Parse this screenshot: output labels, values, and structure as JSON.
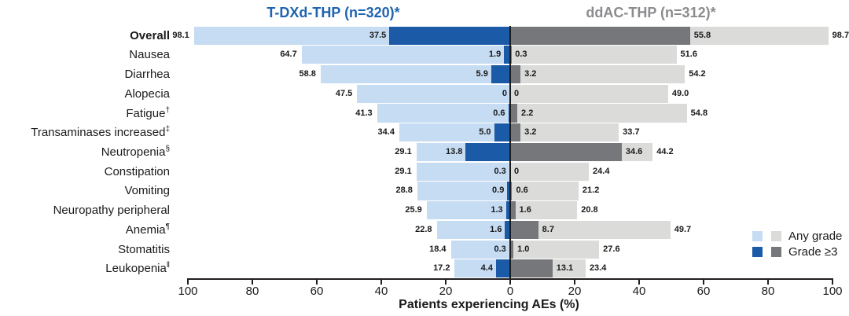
{
  "header": {
    "left_title": "T-DXd-THP (n=320)*",
    "right_title": "ddAC-THP (n=312)*"
  },
  "axis": {
    "label": "Patients experiencing AEs (%)",
    "tick_labels": [
      "100",
      "80",
      "60",
      "40",
      "20",
      "0",
      "20",
      "40",
      "60",
      "80",
      "100"
    ],
    "max_percent": 100
  },
  "legend": {
    "any_grade": "Any grade",
    "grade3": "Grade ≥3"
  },
  "colors": {
    "tdxd_any": "#C6DCF3",
    "tdxd_grade3": "#1A5AA6",
    "ddac_any": "#DBDBDA",
    "ddac_grade3": "#76777A",
    "left_title": "#1E64AE",
    "right_title": "#8B8C8E",
    "axis": "#231F20"
  },
  "rows": [
    {
      "label": "Overall",
      "sup": "",
      "bold": true,
      "tdxd_any": "98.1",
      "tdxd_g3": "37.5",
      "ddac_g3": "55.8",
      "ddac_any": "98.7"
    },
    {
      "label": "Nausea",
      "sup": "",
      "bold": false,
      "tdxd_any": "64.7",
      "tdxd_g3": "1.9",
      "ddac_g3": "0.3",
      "ddac_any": "51.6"
    },
    {
      "label": "Diarrhea",
      "sup": "",
      "bold": false,
      "tdxd_any": "58.8",
      "tdxd_g3": "5.9",
      "ddac_g3": "3.2",
      "ddac_any": "54.2"
    },
    {
      "label": "Alopecia",
      "sup": "",
      "bold": false,
      "tdxd_any": "47.5",
      "tdxd_g3": "0",
      "ddac_g3": "0",
      "ddac_any": "49.0"
    },
    {
      "label": "Fatigue",
      "sup": "†",
      "bold": false,
      "tdxd_any": "41.3",
      "tdxd_g3": "0.6",
      "ddac_g3": "2.2",
      "ddac_any": "54.8"
    },
    {
      "label": "Transaminases increased",
      "sup": "‡",
      "bold": false,
      "tdxd_any": "34.4",
      "tdxd_g3": "5.0",
      "ddac_g3": "3.2",
      "ddac_any": "33.7"
    },
    {
      "label": "Neutropenia",
      "sup": "§",
      "bold": false,
      "tdxd_any": "29.1",
      "tdxd_g3": "13.8",
      "ddac_g3": "34.6",
      "ddac_any": "44.2"
    },
    {
      "label": "Constipation",
      "sup": "",
      "bold": false,
      "tdxd_any": "29.1",
      "tdxd_g3": "0.3",
      "ddac_g3": "0",
      "ddac_any": "24.4"
    },
    {
      "label": "Vomiting",
      "sup": "",
      "bold": false,
      "tdxd_any": "28.8",
      "tdxd_g3": "0.9",
      "ddac_g3": "0.6",
      "ddac_any": "21.2"
    },
    {
      "label": "Neuropathy peripheral",
      "sup": "",
      "bold": false,
      "tdxd_any": "25.9",
      "tdxd_g3": "1.3",
      "ddac_g3": "1.6",
      "ddac_any": "20.8"
    },
    {
      "label": "Anemia",
      "sup": "¶",
      "bold": false,
      "tdxd_any": "22.8",
      "tdxd_g3": "1.6",
      "ddac_g3": "8.7",
      "ddac_any": "49.7"
    },
    {
      "label": "Stomatitis",
      "sup": "",
      "bold": false,
      "tdxd_any": "18.4",
      "tdxd_g3": "0.3",
      "ddac_g3": "1.0",
      "ddac_any": "27.6"
    },
    {
      "label": "Leukopenia",
      "sup": "‖",
      "bold": false,
      "tdxd_any": "17.2",
      "tdxd_g3": "4.4",
      "ddac_g3": "13.1",
      "ddac_any": "23.4"
    }
  ],
  "chart_data": {
    "type": "bar",
    "subtype": "diverging-horizontal-tornado",
    "title": "",
    "xlabel": "Patients experiencing AEs (%)",
    "x_range_each_side": [
      0,
      100
    ],
    "x_tick_interval": 20,
    "grid": false,
    "legend_position": "right-bottom",
    "legend_entries": [
      "Any grade",
      "Grade ≥3"
    ],
    "group_left": "T-DXd-THP (n=320)*",
    "group_right": "ddAC-THP (n=312)*",
    "categories": [
      "Overall",
      "Nausea",
      "Diarrhea",
      "Alopecia",
      "Fatigue†",
      "Transaminases increased‡",
      "Neutropenia§",
      "Constipation",
      "Vomiting",
      "Neuropathy peripheral",
      "Anemia¶",
      "Stomatitis",
      "Leukopenia‖"
    ],
    "series": [
      {
        "name": "T-DXd-THP Any grade",
        "side": "left",
        "color": "#C6DCF3",
        "values": [
          98.1,
          64.7,
          58.8,
          47.5,
          41.3,
          34.4,
          29.1,
          29.1,
          28.8,
          25.9,
          22.8,
          18.4,
          17.2
        ]
      },
      {
        "name": "T-DXd-THP Grade ≥3",
        "side": "left",
        "color": "#1A5AA6",
        "values": [
          37.5,
          1.9,
          5.9,
          0,
          0.6,
          5.0,
          13.8,
          0.3,
          0.9,
          1.3,
          1.6,
          0.3,
          4.4
        ]
      },
      {
        "name": "ddAC-THP Grade ≥3",
        "side": "right",
        "color": "#76777A",
        "values": [
          55.8,
          0.3,
          3.2,
          0,
          2.2,
          3.2,
          34.6,
          0,
          0.6,
          1.6,
          8.7,
          1.0,
          13.1
        ]
      },
      {
        "name": "ddAC-THP Any grade",
        "side": "right",
        "color": "#DBDBDA",
        "values": [
          98.7,
          51.6,
          54.2,
          49.0,
          54.8,
          33.7,
          44.2,
          24.4,
          21.2,
          20.8,
          49.7,
          27.6,
          23.4
        ]
      }
    ]
  }
}
